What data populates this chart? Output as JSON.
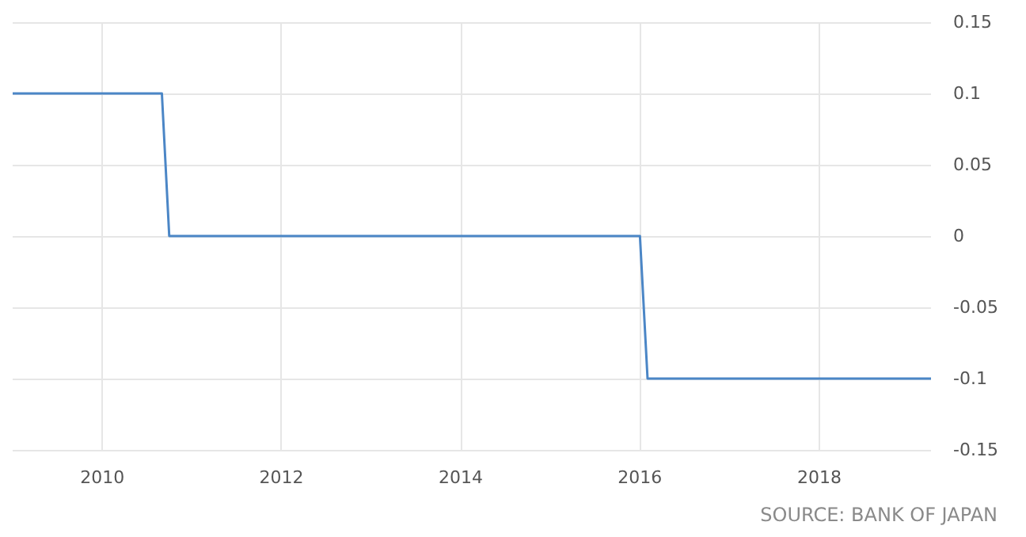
{
  "chart_data": {
    "type": "line",
    "x": [
      "2009-01",
      "2010-09",
      "2010-10",
      "2016-01",
      "2016-02",
      "2019-04"
    ],
    "series": [
      {
        "color": "#4b86c6",
        "values": [
          0.1,
          0.1,
          0,
          0,
          -0.1,
          -0.1
        ]
      }
    ],
    "xlim": [
      "2009-01",
      "2019-04"
    ],
    "xticks": [
      "2010",
      "2012",
      "2014",
      "2016",
      "2018"
    ],
    "ylim": [
      -0.15,
      0.15
    ],
    "yticks": [
      -0.15,
      -0.1,
      -0.05,
      0,
      0.05,
      0.1,
      0.15
    ],
    "grid": true,
    "marker": "none",
    "line_style": "solid",
    "annotations": [
      "SOURCE: BANK OF JAPAN"
    ]
  }
}
